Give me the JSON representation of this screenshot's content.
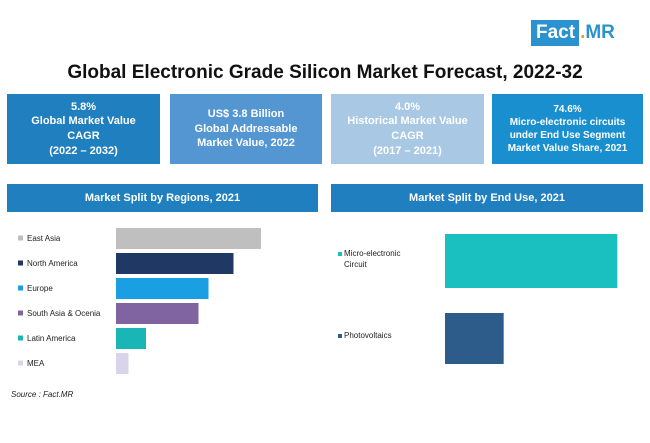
{
  "logo": {
    "part1": "Fact",
    "dot": ".",
    "part2": "MR"
  },
  "title": "Global Electronic Grade Silicon Market Forecast, 2022-32",
  "kpis": [
    {
      "line1": "5.8%",
      "line2": "Global Market Value",
      "line3": "CAGR",
      "line4": "(2022 – 2032)"
    },
    {
      "line1": "US$ 3.8 Billion",
      "line2": "Global Addressable",
      "line3": "Market Value, 2022",
      "line4": ""
    },
    {
      "line1": "4.0%",
      "line2": "Historical Market Value",
      "line3": "CAGR",
      "line4": "(2017 – 2021)"
    },
    {
      "line1": "74.6%",
      "line2": "Micro-electronic circuits",
      "line3": "under End Use Segment",
      "line4": "Market Value Share, 2021"
    }
  ],
  "source": "Source : Fact.MR",
  "chart_data": [
    {
      "type": "bar",
      "orientation": "horizontal",
      "title": "Market Split by Regions, 2021",
      "categories": [
        "East Asia",
        "North America",
        "Europe",
        "South Asia & Ocenia",
        "Latin America",
        "MEA"
      ],
      "values": [
        29,
        23.5,
        18.5,
        16.5,
        6,
        2.5
      ],
      "colors": [
        "#bfbfbf",
        "#1f3864",
        "#1a9fe3",
        "#8064a2",
        "#1ab5b5",
        "#d9d4ea"
      ],
      "xlim": [
        0,
        30
      ],
      "grid": false,
      "legend": "none"
    },
    {
      "type": "bar",
      "orientation": "horizontal",
      "title": "Market Split by End Use, 2021",
      "categories": [
        "Micro-electronic\nCircuit",
        "Photovoltaics"
      ],
      "values": [
        74.6,
        25.4
      ],
      "colors": [
        "#1abfbf",
        "#2e5c8a"
      ],
      "xlim": [
        0,
        100
      ],
      "grid": false,
      "legend": "none"
    }
  ]
}
